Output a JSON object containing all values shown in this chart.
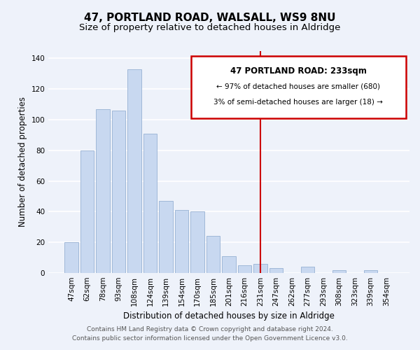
{
  "title": "47, PORTLAND ROAD, WALSALL, WS9 8NU",
  "subtitle": "Size of property relative to detached houses in Aldridge",
  "xlabel": "Distribution of detached houses by size in Aldridge",
  "ylabel": "Number of detached properties",
  "categories": [
    "47sqm",
    "62sqm",
    "78sqm",
    "93sqm",
    "108sqm",
    "124sqm",
    "139sqm",
    "154sqm",
    "170sqm",
    "185sqm",
    "201sqm",
    "216sqm",
    "231sqm",
    "247sqm",
    "262sqm",
    "277sqm",
    "293sqm",
    "308sqm",
    "323sqm",
    "339sqm",
    "354sqm"
  ],
  "values": [
    20,
    80,
    107,
    106,
    133,
    91,
    47,
    41,
    40,
    24,
    11,
    5,
    6,
    3,
    0,
    4,
    0,
    2,
    0,
    2,
    0
  ],
  "bar_color": "#c8d8f0",
  "bar_edge_color": "#a0b8d8",
  "highlight_index": 12,
  "highlight_line_color": "#cc0000",
  "ylim": [
    0,
    145
  ],
  "yticks": [
    0,
    20,
    40,
    60,
    80,
    100,
    120,
    140
  ],
  "annotation_box_text_line1": "47 PORTLAND ROAD: 233sqm",
  "annotation_box_text_line2": "← 97% of detached houses are smaller (680)",
  "annotation_box_text_line3": "3% of semi-detached houses are larger (18) →",
  "annotation_box_edge_color": "#cc0000",
  "annotation_box_facecolor": "#ffffff",
  "footer_line1": "Contains HM Land Registry data © Crown copyright and database right 2024.",
  "footer_line2": "Contains public sector information licensed under the Open Government Licence v3.0.",
  "background_color": "#eef2fa",
  "grid_color": "#ffffff",
  "title_fontsize": 11,
  "subtitle_fontsize": 9.5,
  "tick_fontsize": 7.5,
  "ylabel_fontsize": 8.5,
  "xlabel_fontsize": 8.5,
  "footer_fontsize": 6.5,
  "ann_fontsize_line1": 8.5,
  "ann_fontsize_lines": 7.5
}
